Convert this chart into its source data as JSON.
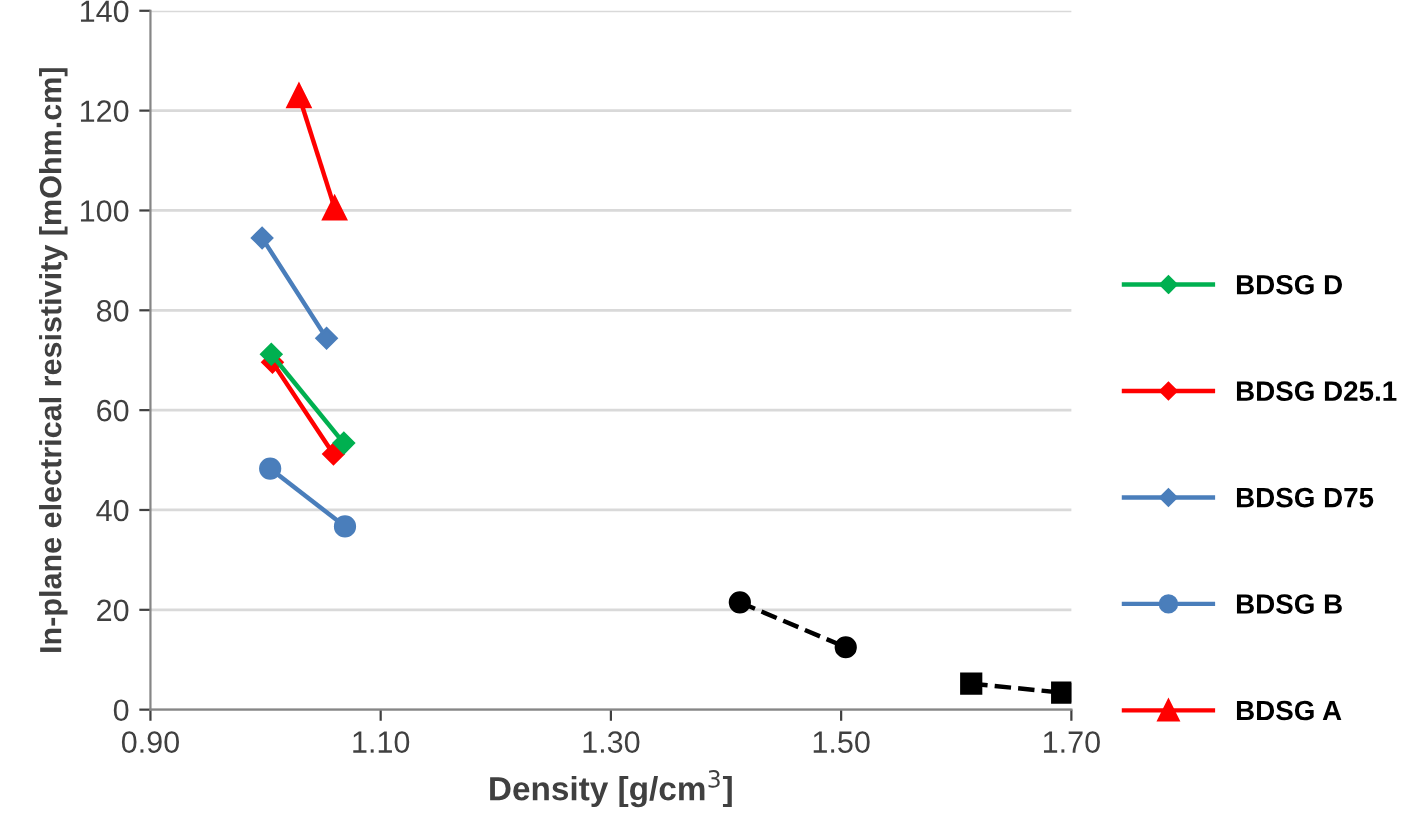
{
  "chart_data": {
    "type": "line",
    "xlabel": "Density [g/cm$^{3}$]",
    "ylabel": "In-plane electrical resistivity [mOhm.cm]",
    "xlim": [
      0.9,
      1.7
    ],
    "xticks": [
      {
        "value": 0.9,
        "label": "0.90"
      },
      {
        "value": 1.1,
        "label": "1.10"
      },
      {
        "value": 1.3,
        "label": "1.30"
      },
      {
        "value": 1.5,
        "label": "1.50"
      },
      {
        "value": 1.7,
        "label": "1.70"
      }
    ],
    "ylim": [
      0,
      140
    ],
    "yticks": [
      0,
      20,
      40,
      60,
      80,
      100,
      120,
      140
    ],
    "grid": "y",
    "legend": "right",
    "series": [
      {
        "color": "#000000",
        "marker": "square",
        "line_style": "dashed",
        "x": [
          1.613,
          1.692
        ],
        "values": [
          5.2,
          3.4
        ]
      },
      {
        "color": "#000000",
        "marker": "circle",
        "line_style": "dashed",
        "x": [
          1.412,
          1.504
        ],
        "values": [
          21.5,
          12.5
        ]
      },
      {
        "name": "BDSG D",
        "color": "#00b050",
        "marker": "diamond",
        "line_style": "solid",
        "x": [
          1.005,
          1.068
        ],
        "values": [
          71.2,
          53.4
        ]
      },
      {
        "name": "BDSG D25.1",
        "color": "#ff0000",
        "marker": "diamond",
        "line_style": "solid",
        "x": [
          1.006,
          1.059
        ],
        "values": [
          69.6,
          51.2
        ]
      },
      {
        "name": "BDSG D75",
        "color": "#4a7ebb",
        "marker": "diamond",
        "line_style": "solid",
        "x": [
          0.997,
          1.053
        ],
        "values": [
          94.5,
          74.4
        ]
      },
      {
        "name": "BDSG B",
        "color": "#4a7ebb",
        "marker": "circle",
        "line_style": "solid",
        "x": [
          1.004,
          1.069
        ],
        "values": [
          48.3,
          36.7
        ]
      },
      {
        "name": "BDSG A",
        "color": "#ff0000",
        "marker": "triangle",
        "line_style": "solid",
        "x": [
          1.029,
          1.06
        ],
        "values": [
          123,
          100.5
        ]
      }
    ]
  }
}
